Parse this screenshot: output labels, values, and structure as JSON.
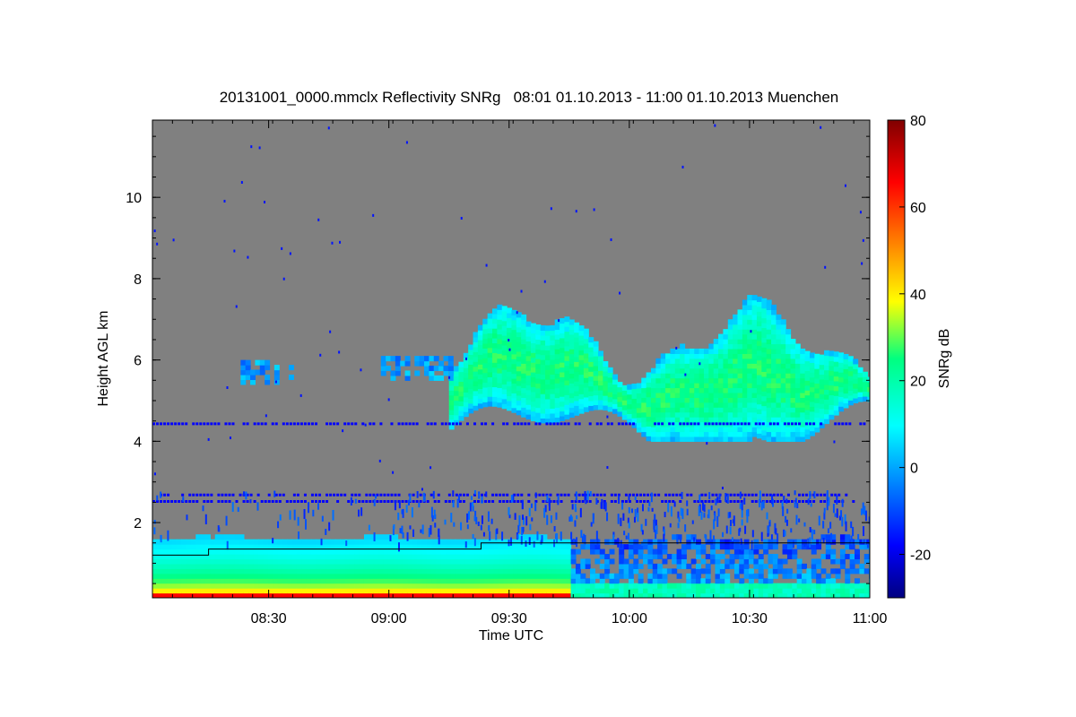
{
  "chart_data": {
    "type": "heatmap",
    "title": "20131001_0000.mmclx Reflectivity SNRg   08:01 01.10.2013 - 11:00 01.10.2013 Muenchen",
    "xlabel": "Time UTC",
    "ylabel": "Height AGL km",
    "x_range_minutes": [
      481,
      660
    ],
    "x_ticks": [
      {
        "value": 510,
        "label": "08:30"
      },
      {
        "value": 540,
        "label": "09:00"
      },
      {
        "value": 570,
        "label": "09:30"
      },
      {
        "value": 600,
        "label": "10:00"
      },
      {
        "value": 630,
        "label": "10:30"
      },
      {
        "value": 660,
        "label": "11:00"
      }
    ],
    "ylim": [
      0.15,
      11.9
    ],
    "y_ticks": [
      2,
      4,
      6,
      8,
      10
    ],
    "colorbar": {
      "label": "SNRg dB",
      "range": [
        -30,
        80
      ],
      "ticks": [
        -20,
        0,
        20,
        40,
        60,
        80
      ],
      "colormap": "jet"
    },
    "background_color": "#808080",
    "features": [
      {
        "name": "boundary layer echo",
        "time_start": 481,
        "time_end": 660,
        "height_top_km": 1.5,
        "snr_surface_db": 65,
        "snr_top_db": 5
      },
      {
        "name": "mid-level cloud",
        "time_start": 555,
        "time_end": 660,
        "height_base_km": 4.0,
        "height_top_km": 7.7,
        "snr_core_db": 25
      },
      {
        "name": "thin cloud fragment",
        "time_start": 503,
        "time_end": 516,
        "height_base_km": 5.4,
        "height_top_km": 5.9
      },
      {
        "name": "thin cloud fragment",
        "time_start": 538,
        "time_end": 556,
        "height_base_km": 5.5,
        "height_top_km": 6.1
      },
      {
        "name": "noise line",
        "height_km": 4.43
      },
      {
        "name": "noise line",
        "height_km": 2.68
      },
      {
        "name": "noise line",
        "height_km": 2.52
      }
    ],
    "boundary_layer_height_line": [
      {
        "time": 481,
        "height_km": 1.2
      },
      {
        "time": 495,
        "height_km": 1.2
      },
      {
        "time": 495,
        "height_km": 1.35
      },
      {
        "time": 563,
        "height_km": 1.35
      },
      {
        "time": 563,
        "height_km": 1.5
      },
      {
        "time": 660,
        "height_km": 1.5
      }
    ]
  }
}
